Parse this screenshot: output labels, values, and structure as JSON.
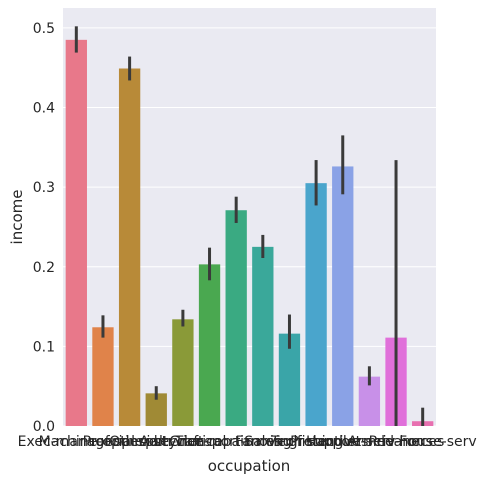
{
  "chart_data": {
    "type": "bar",
    "xlabel": "occupation",
    "ylabel": "income",
    "ylim": [
      0,
      0.525
    ],
    "yticks": [
      0.0,
      0.1,
      0.2,
      0.3,
      0.4,
      0.5
    ],
    "ytick_labels": [
      "0.0",
      "0.1",
      "0.2",
      "0.3",
      "0.4",
      "0.5"
    ],
    "grid": true,
    "categories": [
      "Exec-managerial",
      "Machine-op-inspct",
      "Prof-specialty",
      "Other-service",
      "Adm-clerical",
      "Craft-repair",
      "Transport-moving",
      "Sales",
      "Farming-fishing",
      "Tech-support",
      "Protective-serv",
      "Handlers-cleaners",
      "Armed-Forces",
      "Priv-house-serv"
    ],
    "values": [
      0.485,
      0.124,
      0.449,
      0.041,
      0.134,
      0.203,
      0.271,
      0.225,
      0.116,
      0.305,
      0.326,
      0.062,
      0.111,
      0.006
    ],
    "ci_low": [
      0.469,
      0.111,
      0.434,
      0.033,
      0.125,
      0.183,
      0.255,
      0.211,
      0.097,
      0.277,
      0.291,
      0.051,
      0.0,
      0.0
    ],
    "ci_high": [
      0.502,
      0.139,
      0.464,
      0.05,
      0.146,
      0.224,
      0.288,
      0.24,
      0.14,
      0.334,
      0.365,
      0.075,
      0.334,
      0.023
    ],
    "colors": [
      "#e8788a",
      "#e0834a",
      "#b88a38",
      "#a08a35",
      "#8a9a38",
      "#4aa850",
      "#3aaa82",
      "#3aa89a",
      "#3aa5a8",
      "#4aa5cc",
      "#8aa2e6",
      "#c890e8",
      "#e070da",
      "#e870b0"
    ],
    "errorbar_color": "#3a3a3a",
    "background_color": "#eaeaf2",
    "grid_color": "#ffffff"
  }
}
